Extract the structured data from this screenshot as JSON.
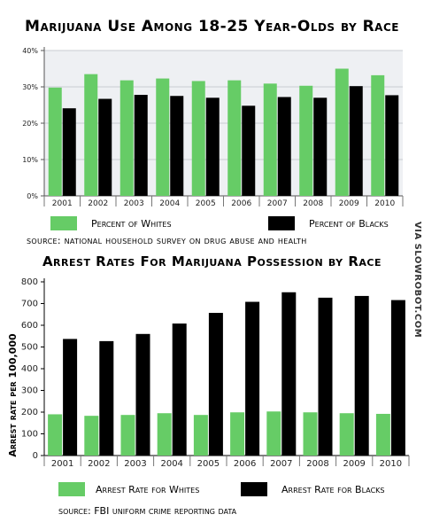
{
  "watermark": "VIA SLOWROBOT.COM",
  "chart_data": [
    {
      "type": "bar",
      "title": "Marijuana Use Among 18-25 Year-Olds by Race",
      "categories": [
        "2001",
        "2002",
        "2003",
        "2004",
        "2005",
        "2006",
        "2007",
        "2008",
        "2009",
        "2010"
      ],
      "series": [
        {
          "name": "Percent of Whites",
          "color": "#66cc66",
          "values": [
            29.8,
            33.5,
            31.8,
            32.3,
            31.6,
            31.8,
            30.9,
            30.3,
            35.0,
            33.2
          ]
        },
        {
          "name": "Percent of Blacks",
          "color": "#000000",
          "values": [
            24.1,
            26.7,
            27.8,
            27.5,
            27.0,
            24.8,
            27.2,
            27.0,
            30.2,
            27.7
          ]
        }
      ],
      "yticks": [
        "0%",
        "10%",
        "20%",
        "30%",
        "40%"
      ],
      "ylim": [
        0,
        40
      ],
      "xlabel": "",
      "ylabel": "",
      "source": "source: national household survey on drug abuse and health",
      "grid": true,
      "legend": "bottom"
    },
    {
      "type": "bar",
      "title": "Arrest Rates For Marijuana Possession by Race",
      "categories": [
        "2001",
        "2002",
        "2003",
        "2004",
        "2005",
        "2006",
        "2007",
        "2008",
        "2009",
        "2010"
      ],
      "series": [
        {
          "name": "Arrest Rate for Whites",
          "color": "#66cc66",
          "values": [
            190,
            183,
            187,
            195,
            187,
            199,
            203,
            199,
            195,
            192
          ]
        },
        {
          "name": "Arrest Rate for Blacks",
          "color": "#000000",
          "values": [
            537,
            527,
            560,
            608,
            657,
            708,
            752,
            727,
            735,
            716
          ]
        }
      ],
      "yticks": [
        "0",
        "100",
        "200",
        "300",
        "400",
        "500",
        "600",
        "700",
        "800"
      ],
      "ylim": [
        0,
        800
      ],
      "xlabel": "",
      "ylabel": "Arrest rate per 100,000",
      "source": "source: FBI uniform crime reporting data",
      "grid": false,
      "legend": "bottom"
    }
  ]
}
